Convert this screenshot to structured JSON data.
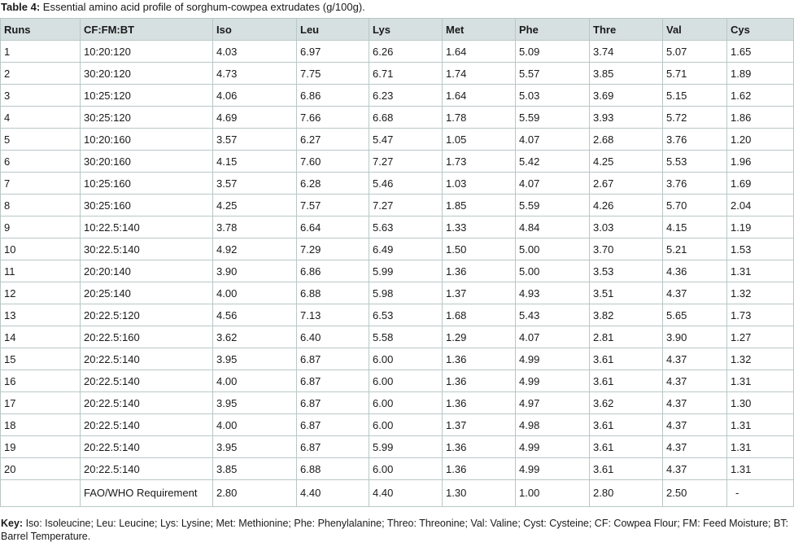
{
  "caption": {
    "label": "Table 4:",
    "text": " Essential amino acid profile of sorghum-cowpea extrudates (g/100g)."
  },
  "table": {
    "headers": [
      "Runs",
      "CF:FM:BT",
      "Iso",
      "Leu",
      "Lys",
      "Met",
      "Phe",
      "Thre",
      "Val",
      "Cys"
    ],
    "rows": [
      [
        "1",
        "10:20:120",
        "4.03",
        "6.97",
        "6.26",
        "1.64",
        "5.09",
        "3.74",
        "5.07",
        "1.65"
      ],
      [
        "2",
        "30:20:120",
        "4.73",
        "7.75",
        "6.71",
        "1.74",
        "5.57",
        "3.85",
        "5.71",
        "1.89"
      ],
      [
        "3",
        "10:25:120",
        "4.06",
        "6.86",
        "6.23",
        "1.64",
        "5.03",
        "3.69",
        "5.15",
        "1.62"
      ],
      [
        "4",
        "30:25:120",
        "4.69",
        "7.66",
        "6.68",
        "1.78",
        "5.59",
        "3.93",
        "5.72",
        "1.86"
      ],
      [
        "5",
        "10:20:160",
        "3.57",
        "6.27",
        "5.47",
        "1.05",
        "4.07",
        "2.68",
        "3.76",
        "1.20"
      ],
      [
        "6",
        "30:20:160",
        "4.15",
        "7.60",
        "7.27",
        "1.73",
        "5.42",
        "4.25",
        "5.53",
        "1.96"
      ],
      [
        "7",
        "10:25:160",
        "3.57",
        "6.28",
        "5.46",
        "1.03",
        "4.07",
        "2.67",
        "3.76",
        "1.69"
      ],
      [
        "8",
        "30:25:160",
        "4.25",
        "7.57",
        "7.27",
        "1.85",
        "5.59",
        "4.26",
        "5.70",
        "2.04"
      ],
      [
        "9",
        "10:22.5:140",
        "3.78",
        "6.64",
        "5.63",
        "1.33",
        "4.84",
        "3.03",
        "4.15",
        "1.19"
      ],
      [
        "10",
        "30:22.5:140",
        "4.92",
        "7.29",
        "6.49",
        "1.50",
        "5.00",
        "3.70",
        "5.21",
        "1.53"
      ],
      [
        "11",
        "20:20:140",
        "3.90",
        "6.86",
        "5.99",
        "1.36",
        "5.00",
        "3.53",
        "4.36",
        "1.31"
      ],
      [
        "12",
        "20:25:140",
        "4.00",
        "6.88",
        "5.98",
        "1.37",
        "4.93",
        "3.51",
        "4.37",
        "1.32"
      ],
      [
        "13",
        "20:22.5:120",
        "4.56",
        "7.13",
        "6.53",
        "1.68",
        "5.43",
        "3.82",
        "5.65",
        "1.73"
      ],
      [
        "14",
        "20:22.5:160",
        "3.62",
        "6.40",
        "5.58",
        "1.29",
        "4.07",
        "2.81",
        "3.90",
        "1.27"
      ],
      [
        "15",
        "20:22.5:140",
        "3.95",
        "6.87",
        "6.00",
        "1.36",
        "4.99",
        "3.61",
        "4.37",
        "1.32"
      ],
      [
        "16",
        "20:22.5:140",
        "4.00",
        "6.87",
        "6.00",
        "1.36",
        "4.99",
        "3.61",
        "4.37",
        "1.31"
      ],
      [
        "17",
        "20:22.5:140",
        "3.95",
        "6.87",
        "6.00",
        "1.36",
        "4.97",
        "3.62",
        "4.37",
        "1.30"
      ],
      [
        "18",
        "20:22.5:140",
        "4.00",
        "6.87",
        "6.00",
        "1.37",
        "4.98",
        "3.61",
        "4.37",
        "1.31"
      ],
      [
        "19",
        "20:22.5:140",
        "3.95",
        "6.87",
        "5.99",
        "1.36",
        "4.99",
        "3.61",
        "4.37",
        "1.31"
      ],
      [
        "20",
        "20:22.5:140",
        "3.85",
        "6.88",
        "6.00",
        "1.36",
        "4.99",
        "3.61",
        "4.37",
        "1.31"
      ]
    ],
    "requirement_row": [
      "",
      "FAO/WHO Requirement",
      "2.80",
      "4.40",
      "4.40",
      "1.30",
      "1.00",
      "2.80",
      "2.50",
      "-"
    ]
  },
  "key": {
    "label": "Key:",
    "text": " Iso: Isoleucine; Leu: Leucine; Lys: Lysine; Met: Methionine; Phe: Phenylalanine; Threo: Threonine; Val: Valine; Cyst: Cysteine; CF: Cowpea Flour; FM: Feed Moisture; BT: Barrel Temperature."
  },
  "colors": {
    "header_bg": "#d7e0e0",
    "border": "#b9c7c7"
  }
}
